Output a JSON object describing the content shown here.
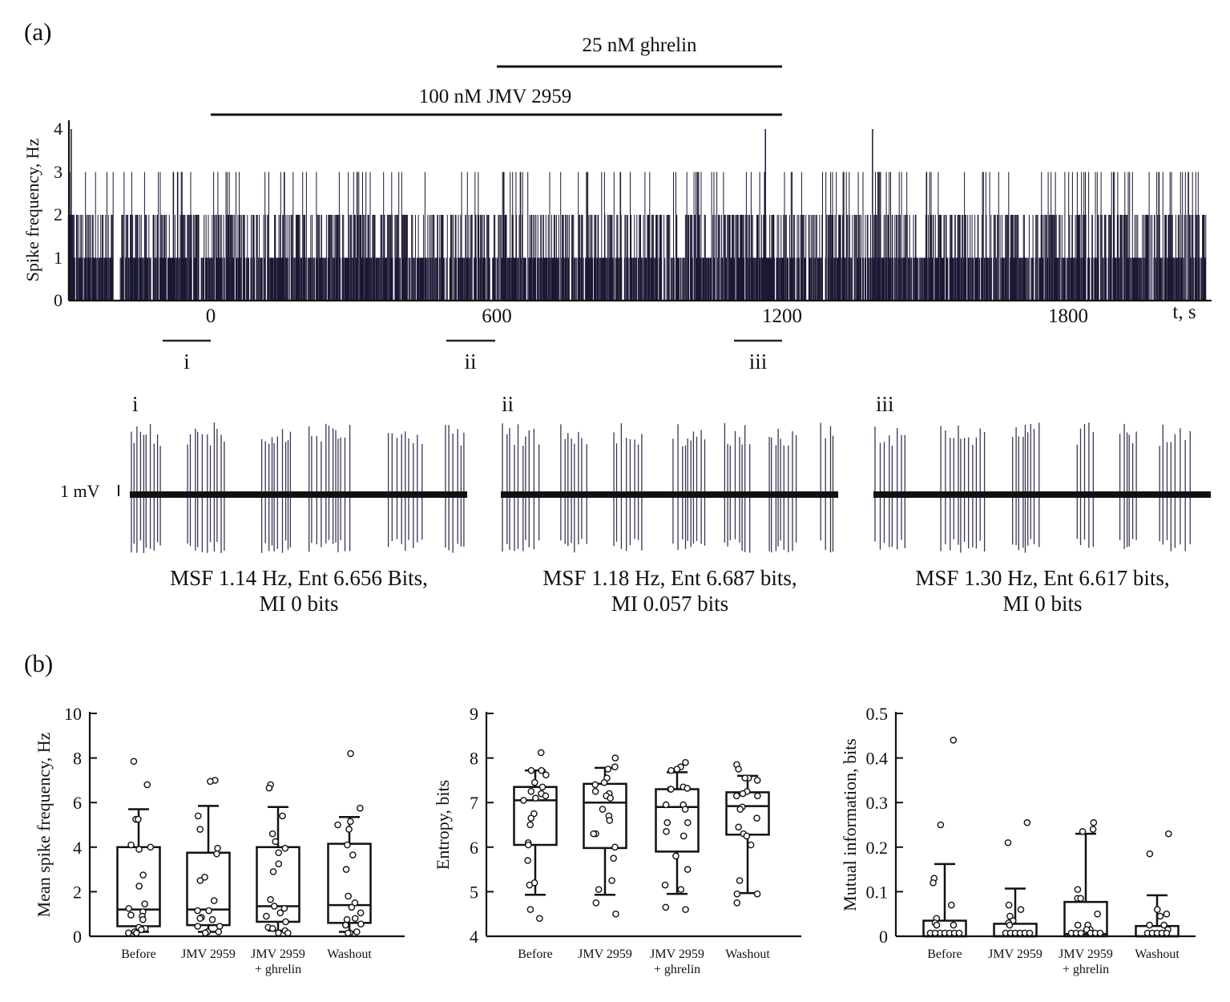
{
  "panel_a": {
    "label": "(a)",
    "drugs": [
      {
        "label": "25 nM ghrelin",
        "start": 600,
        "end": 1200
      },
      {
        "label": "100 nM JMV 2959",
        "start": 0,
        "end": 1200
      }
    ],
    "segments": [
      {
        "label": "i",
        "start": -100,
        "end": 0
      },
      {
        "label": "ii",
        "start": 500,
        "end": 600
      },
      {
        "label": "iii",
        "start": 1100,
        "end": 1200
      }
    ],
    "traces": [
      {
        "label": "i",
        "caption1": "MSF 1.14 Hz, Ent 6.656 Bits,",
        "caption2": "MI 0 bits"
      },
      {
        "label": "ii",
        "caption1": "MSF 1.18 Hz, Ent 6.687 bits,",
        "caption2": "MI 0.057 bits"
      },
      {
        "label": "iii",
        "caption1": "MSF 1.30 Hz, Ent 6.617 bits,",
        "caption2": "MI 0 bits"
      }
    ],
    "scale_bar": "1 mV",
    "trace_color": "#3a3556"
  },
  "panel_b": {
    "label": "(b)"
  },
  "chart_data": [
    {
      "type": "bar",
      "title": "",
      "ylabel": "Spike frequency, Hz",
      "xlabel": "t, s",
      "xlim": [
        -300,
        2100
      ],
      "ylim": [
        0,
        4
      ],
      "xticks": [
        "0",
        "600",
        "1200",
        "1800"
      ],
      "yticks": [
        "0",
        "1",
        "2",
        "3",
        "4"
      ],
      "bin_width_s": 1,
      "typical_values": [
        0,
        1,
        2,
        3
      ],
      "peaks": [
        {
          "t": -293,
          "value": 4
        },
        {
          "t": 1165,
          "value": 4
        },
        {
          "t": 1390,
          "value": 4
        }
      ],
      "color": "#1a1833"
    },
    {
      "type": "box",
      "ylabel": "Mean spike frequency, Hz",
      "ylim": [
        0,
        10
      ],
      "yticks": [
        "0",
        "2",
        "4",
        "6",
        "8",
        "10"
      ],
      "categories": [
        "Before",
        "JMV 2959",
        "JMV 2959|+ ghrelin",
        "Washout"
      ],
      "boxes": [
        {
          "q1": 0.45,
          "median": 1.2,
          "q3": 4.0,
          "whisker_low": 0.2,
          "whisker_high": 5.7
        },
        {
          "q1": 0.5,
          "median": 1.2,
          "q3": 3.75,
          "whisker_low": 0.2,
          "whisker_high": 5.85
        },
        {
          "q1": 0.65,
          "median": 1.35,
          "q3": 4.0,
          "whisker_low": 0.25,
          "whisker_high": 5.8
        },
        {
          "q1": 0.6,
          "median": 1.4,
          "q3": 4.15,
          "whisker_low": 0.2,
          "whisker_high": 5.35
        }
      ],
      "points": [
        [
          7.85,
          6.8,
          5.25,
          5.25,
          4.1,
          4.0,
          3.9,
          2.75,
          2.25,
          1.45,
          1.25,
          1.1,
          0.95,
          0.9,
          0.75,
          0.4,
          0.35,
          0.3,
          0.2,
          0.15,
          0.1
        ],
        [
          7.0,
          6.95,
          5.4,
          4.8,
          3.95,
          3.7,
          2.65,
          2.5,
          1.6,
          1.15,
          1.15,
          0.85,
          0.8,
          0.75,
          0.45,
          0.45,
          0.2,
          0.2,
          0.15
        ],
        [
          6.8,
          6.65,
          5.4,
          4.6,
          4.25,
          3.95,
          3.75,
          3.25,
          2.9,
          1.65,
          1.35,
          1.25,
          1.05,
          0.9,
          0.65,
          0.4,
          0.35,
          0.25,
          0.15,
          0.1
        ],
        [
          8.2,
          5.75,
          5.15,
          5.0,
          4.8,
          4.1,
          3.65,
          3.0,
          1.8,
          1.5,
          1.3,
          1.05,
          0.8,
          0.75,
          0.55,
          0.5,
          0.2,
          0.15,
          0.1
        ]
      ]
    },
    {
      "type": "box",
      "ylabel": "Entropy, bits",
      "ylim": [
        4,
        9
      ],
      "yticks": [
        "4",
        "5",
        "6",
        "7",
        "8",
        "9"
      ],
      "categories": [
        "Before",
        "JMV 2959",
        "JMV 2959|+ ghrelin",
        "Washout"
      ],
      "boxes": [
        {
          "q1": 6.05,
          "median": 7.05,
          "q3": 7.35,
          "whisker_low": 4.93,
          "whisker_high": 7.72
        },
        {
          "q1": 5.98,
          "median": 7.0,
          "q3": 7.42,
          "whisker_low": 4.93,
          "whisker_high": 7.78
        },
        {
          "q1": 5.9,
          "median": 6.9,
          "q3": 7.3,
          "whisker_low": 4.95,
          "whisker_high": 7.68
        },
        {
          "q1": 6.28,
          "median": 6.92,
          "q3": 7.23,
          "whisker_low": 4.97,
          "whisker_high": 7.6
        }
      ],
      "points": [
        [
          8.12,
          7.72,
          7.72,
          7.62,
          7.45,
          7.35,
          7.25,
          7.2,
          7.15,
          7.1,
          7.05,
          6.75,
          6.65,
          6.5,
          6.1,
          6.05,
          5.7,
          5.2,
          5.15,
          4.6,
          4.4
        ],
        [
          8.0,
          7.8,
          7.75,
          7.55,
          7.45,
          7.4,
          7.25,
          7.2,
          7.15,
          7.1,
          6.85,
          6.7,
          6.6,
          6.3,
          6.3,
          6.0,
          5.75,
          5.25,
          5.05,
          4.75,
          4.5
        ],
        [
          7.9,
          7.8,
          7.75,
          7.72,
          7.35,
          7.32,
          7.3,
          7.3,
          6.95,
          6.95,
          6.85,
          6.55,
          6.55,
          6.35,
          6.25,
          5.8,
          5.5,
          5.15,
          5.05,
          4.65,
          4.6
        ],
        [
          7.85,
          7.75,
          7.55,
          7.55,
          7.5,
          7.25,
          7.2,
          7.15,
          7.15,
          6.9,
          6.85,
          6.65,
          6.45,
          6.3,
          6.25,
          6.05,
          5.25,
          4.95,
          4.95,
          4.75
        ]
      ]
    },
    {
      "type": "box",
      "ylabel": "Mutual information, bits",
      "ylim": [
        0,
        0.5
      ],
      "yticks": [
        "0",
        "0.1",
        "0.2",
        "0.3",
        "0.4",
        "0.5"
      ],
      "categories": [
        "Before",
        "JMV 2959",
        "JMV 2959|+ ghrelin",
        "Washout"
      ],
      "boxes": [
        {
          "q1": 0,
          "median": 0,
          "q3": 0.035,
          "whisker_low": 0,
          "whisker_high": 0.162
        },
        {
          "q1": 0,
          "median": 0,
          "q3": 0.028,
          "whisker_low": 0,
          "whisker_high": 0.107
        },
        {
          "q1": 0,
          "median": 0.005,
          "q3": 0.077,
          "whisker_low": 0,
          "whisker_high": 0.23
        },
        {
          "q1": 0,
          "median": 0,
          "q3": 0.023,
          "whisker_low": 0,
          "whisker_high": 0.092
        }
      ],
      "points": [
        [
          0.44,
          0.25,
          0.13,
          0.12,
          0.07,
          0.04,
          0.03,
          0.025,
          0.025,
          0,
          0,
          0,
          0,
          0,
          0,
          0
        ],
        [
          0.255,
          0.21,
          0.07,
          0.06,
          0.045,
          0.035,
          0.03,
          0.025,
          0,
          0,
          0,
          0,
          0,
          0
        ],
        [
          0.255,
          0.24,
          0.235,
          0.105,
          0.085,
          0.085,
          0.05,
          0.025,
          0.025,
          0.015,
          0.015,
          0,
          0,
          0,
          0,
          0,
          0
        ],
        [
          0.23,
          0.185,
          0.06,
          0.05,
          0.045,
          0.025,
          0.025,
          0.015,
          0,
          0,
          0,
          0,
          0
        ]
      ]
    }
  ]
}
